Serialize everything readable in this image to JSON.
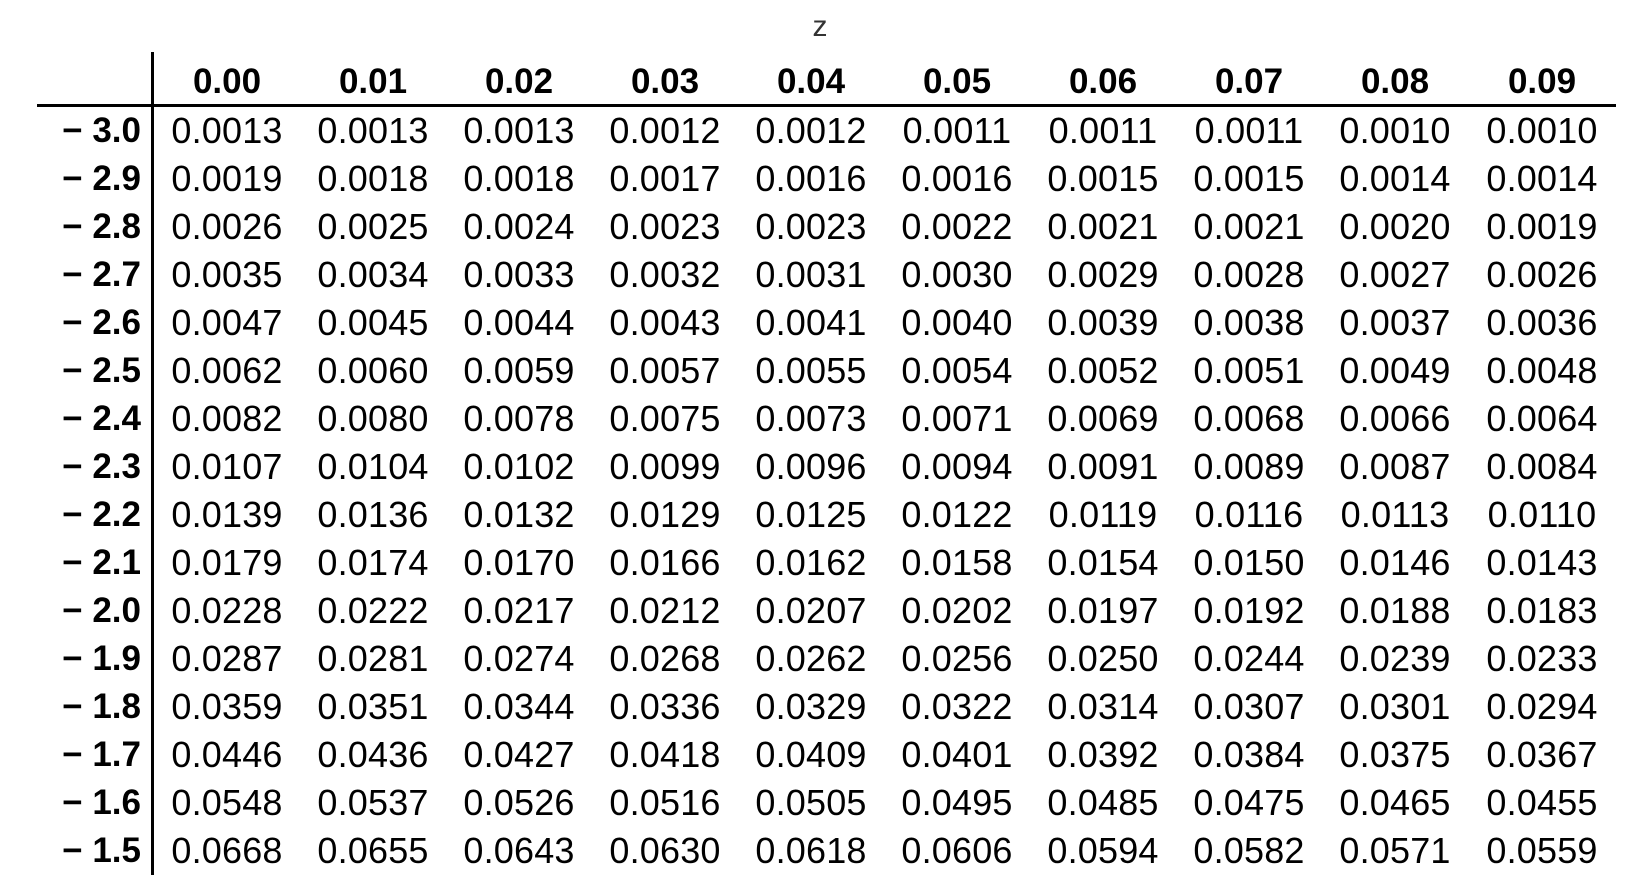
{
  "caption": "z",
  "columns": [
    "0.00",
    "0.01",
    "0.02",
    "0.03",
    "0.04",
    "0.05",
    "0.06",
    "0.07",
    "0.08",
    "0.09"
  ],
  "rows": [
    {
      "z": "− 3.0",
      "values": [
        "0.0013",
        "0.0013",
        "0.0013",
        "0.0012",
        "0.0012",
        "0.0011",
        "0.0011",
        "0.0011",
        "0.0010",
        "0.0010"
      ]
    },
    {
      "z": "− 2.9",
      "values": [
        "0.0019",
        "0.0018",
        "0.0018",
        "0.0017",
        "0.0016",
        "0.0016",
        "0.0015",
        "0.0015",
        "0.0014",
        "0.0014"
      ]
    },
    {
      "z": "− 2.8",
      "values": [
        "0.0026",
        "0.0025",
        "0.0024",
        "0.0023",
        "0.0023",
        "0.0022",
        "0.0021",
        "0.0021",
        "0.0020",
        "0.0019"
      ]
    },
    {
      "z": "− 2.7",
      "values": [
        "0.0035",
        "0.0034",
        "0.0033",
        "0.0032",
        "0.0031",
        "0.0030",
        "0.0029",
        "0.0028",
        "0.0027",
        "0.0026"
      ]
    },
    {
      "z": "− 2.6",
      "values": [
        "0.0047",
        "0.0045",
        "0.0044",
        "0.0043",
        "0.0041",
        "0.0040",
        "0.0039",
        "0.0038",
        "0.0037",
        "0.0036"
      ]
    },
    {
      "z": "− 2.5",
      "values": [
        "0.0062",
        "0.0060",
        "0.0059",
        "0.0057",
        "0.0055",
        "0.0054",
        "0.0052",
        "0.0051",
        "0.0049",
        "0.0048"
      ]
    },
    {
      "z": "− 2.4",
      "values": [
        "0.0082",
        "0.0080",
        "0.0078",
        "0.0075",
        "0.0073",
        "0.0071",
        "0.0069",
        "0.0068",
        "0.0066",
        "0.0064"
      ]
    },
    {
      "z": "− 2.3",
      "values": [
        "0.0107",
        "0.0104",
        "0.0102",
        "0.0099",
        "0.0096",
        "0.0094",
        "0.0091",
        "0.0089",
        "0.0087",
        "0.0084"
      ]
    },
    {
      "z": "− 2.2",
      "values": [
        "0.0139",
        "0.0136",
        "0.0132",
        "0.0129",
        "0.0125",
        "0.0122",
        "0.0119",
        "0.0116",
        "0.0113",
        "0.0110"
      ]
    },
    {
      "z": "− 2.1",
      "values": [
        "0.0179",
        "0.0174",
        "0.0170",
        "0.0166",
        "0.0162",
        "0.0158",
        "0.0154",
        "0.0150",
        "0.0146",
        "0.0143"
      ]
    },
    {
      "z": "− 2.0",
      "values": [
        "0.0228",
        "0.0222",
        "0.0217",
        "0.0212",
        "0.0207",
        "0.0202",
        "0.0197",
        "0.0192",
        "0.0188",
        "0.0183"
      ]
    },
    {
      "z": "− 1.9",
      "values": [
        "0.0287",
        "0.0281",
        "0.0274",
        "0.0268",
        "0.0262",
        "0.0256",
        "0.0250",
        "0.0244",
        "0.0239",
        "0.0233"
      ]
    },
    {
      "z": "− 1.8",
      "values": [
        "0.0359",
        "0.0351",
        "0.0344",
        "0.0336",
        "0.0329",
        "0.0322",
        "0.0314",
        "0.0307",
        "0.0301",
        "0.0294"
      ]
    },
    {
      "z": "− 1.7",
      "values": [
        "0.0446",
        "0.0436",
        "0.0427",
        "0.0418",
        "0.0409",
        "0.0401",
        "0.0392",
        "0.0384",
        "0.0375",
        "0.0367"
      ]
    },
    {
      "z": "− 1.6",
      "values": [
        "0.0548",
        "0.0537",
        "0.0526",
        "0.0516",
        "0.0505",
        "0.0495",
        "0.0485",
        "0.0475",
        "0.0465",
        "0.0455"
      ]
    },
    {
      "z": "− 1.5",
      "values": [
        "0.0668",
        "0.0655",
        "0.0643",
        "0.0630",
        "0.0618",
        "0.0606",
        "0.0594",
        "0.0582",
        "0.0571",
        "0.0559"
      ]
    }
  ]
}
